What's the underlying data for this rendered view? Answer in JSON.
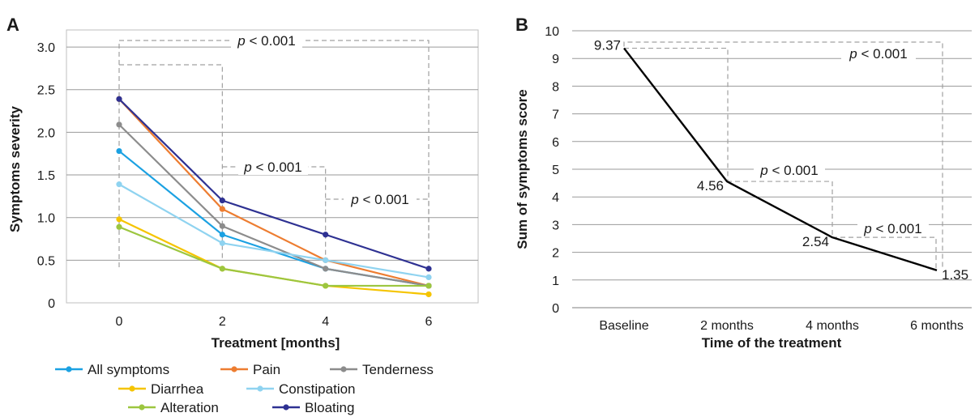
{
  "figure": {
    "panel_a_label": "A",
    "panel_b_label": "B"
  },
  "chart_data": [
    {
      "type": "line",
      "panel": "A",
      "title": "",
      "xlabel": "Treatment [months]",
      "ylabel": "Symptoms severity",
      "x": [
        0,
        2,
        4,
        6
      ],
      "x_tick_labels": [
        "0",
        "2",
        "4",
        "6"
      ],
      "y_tick_labels": [
        "0",
        "0.5",
        "1.0",
        "1.5",
        "2.0",
        "2.5",
        "3.0"
      ],
      "ylim": [
        0,
        3.2
      ],
      "grid": "horizontal",
      "legend_position": "bottom",
      "series": [
        {
          "name": "All symptoms",
          "color": "#1ba1e2",
          "values": [
            1.78,
            0.8,
            0.4,
            0.2
          ]
        },
        {
          "name": "Pain",
          "color": "#ed7d31",
          "values": [
            2.39,
            1.1,
            0.5,
            0.2
          ]
        },
        {
          "name": "Tenderness",
          "color": "#8c8c8c",
          "values": [
            2.09,
            0.9,
            0.4,
            0.2
          ]
        },
        {
          "name": "Diarrhea",
          "color": "#f5c400",
          "values": [
            0.98,
            0.4,
            0.2,
            0.1
          ]
        },
        {
          "name": "Constipation",
          "color": "#8fd3f0",
          "values": [
            1.39,
            0.7,
            0.5,
            0.3
          ]
        },
        {
          "name": "Alteration",
          "color": "#9cc63f",
          "values": [
            0.89,
            0.4,
            0.2,
            0.2
          ]
        },
        {
          "name": "Bloating",
          "color": "#2e3192",
          "values": [
            2.39,
            1.2,
            0.8,
            0.4
          ]
        }
      ],
      "annotations": [
        {
          "text": "p < 0.001",
          "italic_part": "p",
          "rest": " < 0.001",
          "between": [
            0,
            6
          ]
        },
        {
          "text": "p < 0.001",
          "italic_part": "p",
          "rest": " < 0.001",
          "between": [
            2,
            4
          ]
        },
        {
          "text": "p < 0.001",
          "italic_part": "p",
          "rest": " < 0.001",
          "between": [
            4,
            6
          ]
        }
      ]
    },
    {
      "type": "line",
      "panel": "B",
      "title": "",
      "xlabel": "Time of the treatment",
      "ylabel": "Sum of symptoms score",
      "categories": [
        "Baseline",
        "2 months",
        "4 months",
        "6 months"
      ],
      "y_tick_labels": [
        "0",
        "1",
        "2",
        "3",
        "4",
        "5",
        "6",
        "7",
        "8",
        "9",
        "10"
      ],
      "ylim": [
        0,
        10
      ],
      "grid": "horizontal",
      "series": [
        {
          "color": "#000000",
          "values": [
            9.37,
            4.56,
            2.54,
            1.35
          ]
        }
      ],
      "data_labels": [
        "9.37",
        "4.56",
        "2.54",
        "1.35"
      ],
      "annotations": [
        {
          "text": "p < 0.001",
          "italic_part": "p",
          "rest": " < 0.001",
          "between": [
            "Baseline",
            "6 months"
          ]
        },
        {
          "text": "p < 0.001",
          "italic_part": "p",
          "rest": " < 0.001",
          "between": [
            "2 months",
            "4 months"
          ]
        },
        {
          "text": "p < 0.001",
          "italic_part": "p",
          "rest": " < 0.001",
          "between": [
            "4 months",
            "6 months"
          ]
        }
      ]
    }
  ]
}
